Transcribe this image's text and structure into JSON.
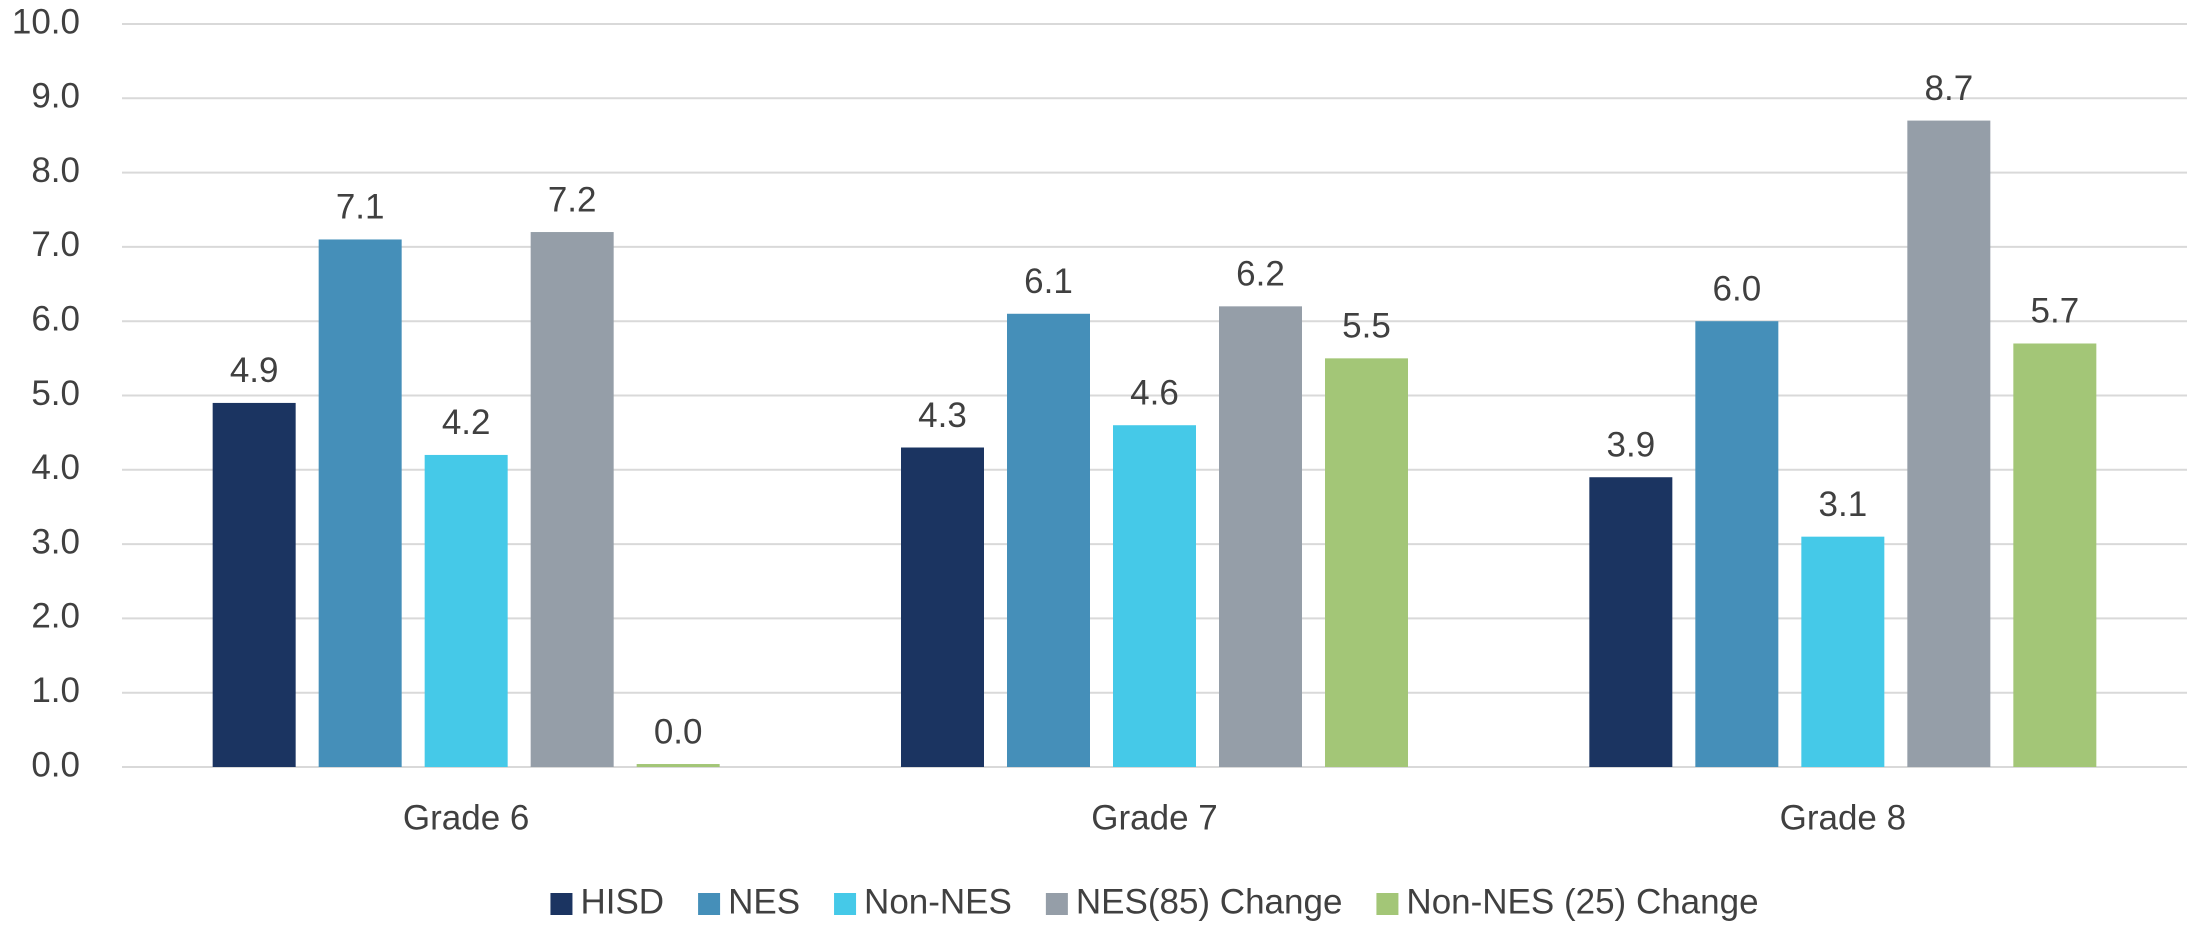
{
  "chart_data": {
    "type": "bar",
    "categories": [
      "Grade 6",
      "Grade 7",
      "Grade 8"
    ],
    "series": [
      {
        "name": "HISD",
        "color": "#1b3461",
        "values": [
          4.9,
          4.3,
          3.9
        ]
      },
      {
        "name": "NES",
        "color": "#458fb9",
        "values": [
          7.1,
          6.1,
          6.0
        ],
        "value_labels": [
          "7.1",
          "6.1",
          "6.0"
        ]
      },
      {
        "name": "Non-NES",
        "color": "#45c9e8",
        "values": [
          4.2,
          4.6,
          3.1
        ]
      },
      {
        "name": "NES(85) Change",
        "color": "#959ea8",
        "values": [
          7.2,
          6.2,
          8.7
        ]
      },
      {
        "name": "Non-NES (25) Change",
        "color": "#a3c677",
        "values": [
          0.04,
          5.5,
          5.7
        ],
        "value_labels": [
          "0.0",
          "5.5",
          "5.7"
        ]
      }
    ],
    "ylim": [
      0,
      10
    ],
    "yticks": [
      {
        "value": 0,
        "label": "0.0"
      },
      {
        "value": 1,
        "label": "1.0"
      },
      {
        "value": 2,
        "label": "2.0"
      },
      {
        "value": 3,
        "label": "3.0"
      },
      {
        "value": 4,
        "label": "4.0"
      },
      {
        "value": 5,
        "label": "5.0"
      },
      {
        "value": 6,
        "label": "6.0"
      },
      {
        "value": 7,
        "label": "7.0"
      },
      {
        "value": 8,
        "label": "8.0"
      },
      {
        "value": 9,
        "label": "9.0"
      },
      {
        "value": 10,
        "label": "10.0"
      }
    ],
    "grid": true,
    "legend": "bottom"
  }
}
